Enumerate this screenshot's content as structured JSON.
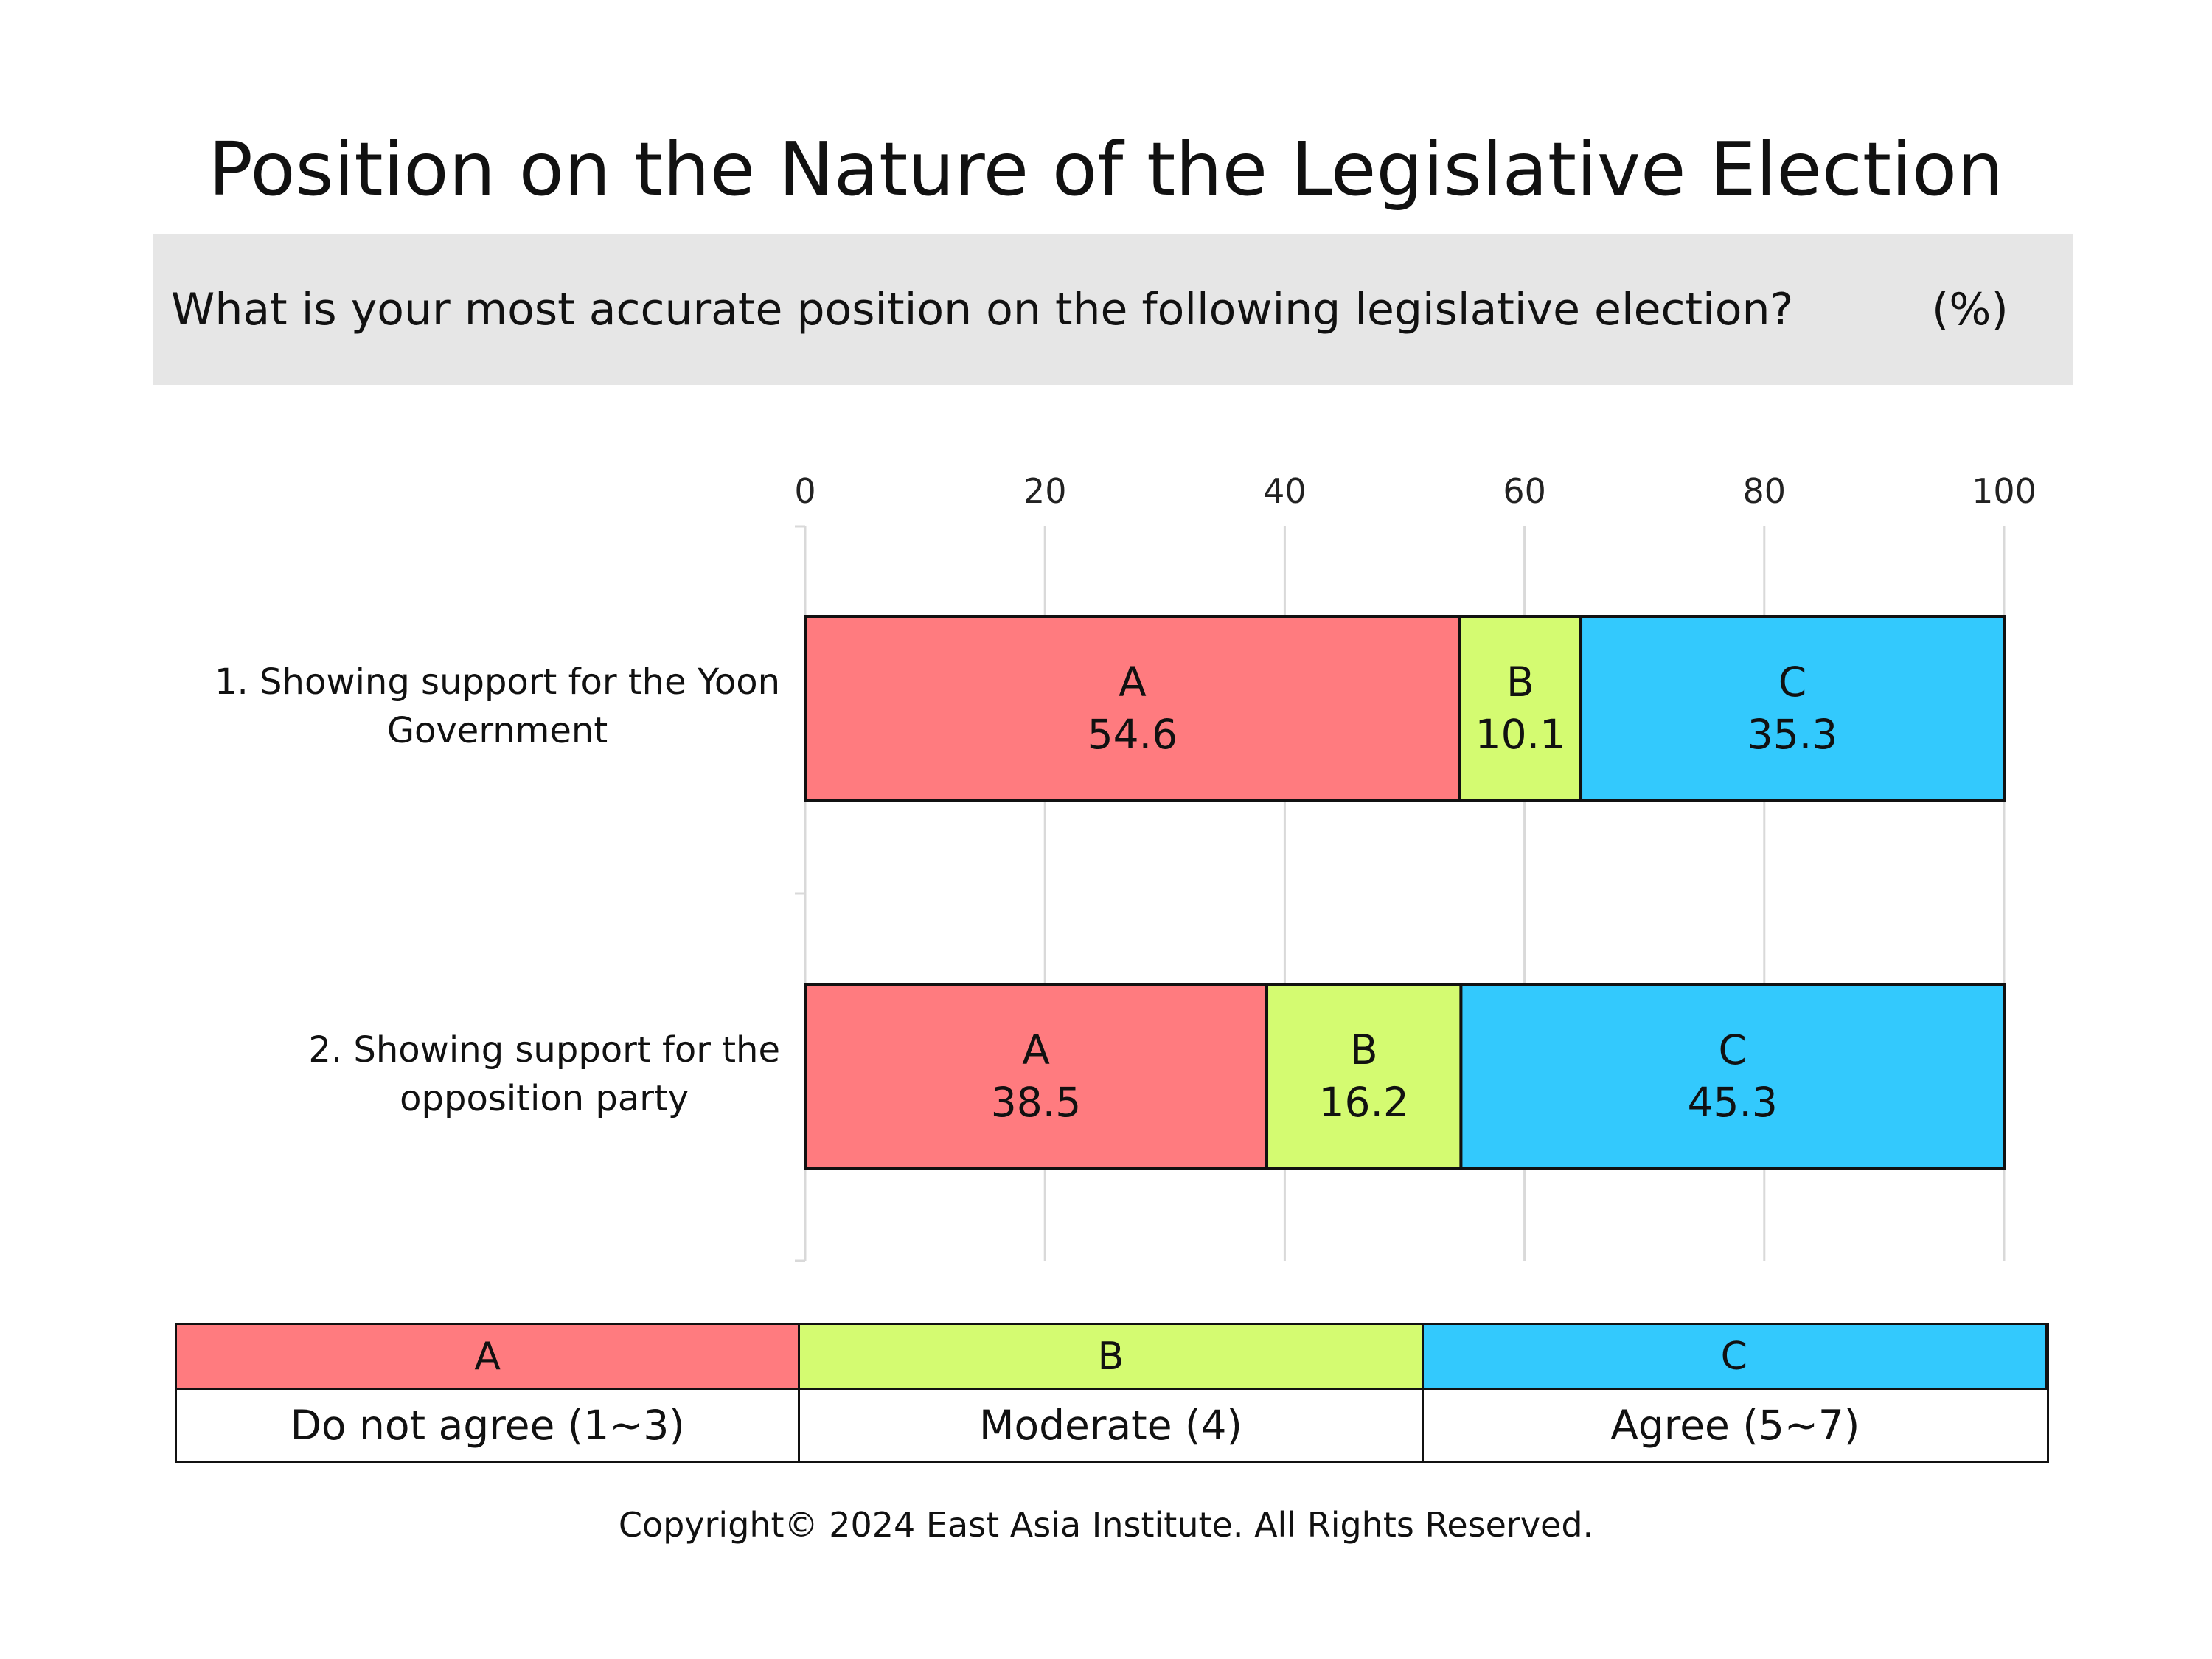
{
  "header": {
    "title": "Position on the Nature of the Legislative Election",
    "question": "What is your most accurate position on the following legislative election?",
    "unit": "(%)"
  },
  "legend": [
    {
      "key": "A",
      "description": "Do not agree (1~3)",
      "color": "#ff7b7f"
    },
    {
      "key": "B",
      "description": "Moderate (4)",
      "color": "#d4fb71"
    },
    {
      "key": "C",
      "description": "Agree (5~7)",
      "color": "#33c9fd"
    }
  ],
  "chart_data": {
    "type": "bar",
    "orientation": "horizontal",
    "stacked": true,
    "title": "Position on the Nature of the Legislative Election",
    "xlim": [
      0,
      100
    ],
    "xticks": [
      0,
      20,
      40,
      60,
      80,
      100
    ],
    "grid": true,
    "categories": [
      [
        "1. Showing support for the Yoon",
        "Government"
      ],
      [
        "2. Showing support for the",
        "opposition party"
      ]
    ],
    "series": [
      {
        "name": "A",
        "color": "#ff7b7f",
        "values": [
          54.6,
          38.5
        ]
      },
      {
        "name": "B",
        "color": "#d4fb71",
        "values": [
          10.1,
          16.2
        ]
      },
      {
        "name": "C",
        "color": "#33c9fd",
        "values": [
          35.3,
          45.3
        ]
      }
    ]
  },
  "footer": {
    "copyright": "Copyright© 2024 East Asia Institute. All Rights Reserved."
  }
}
